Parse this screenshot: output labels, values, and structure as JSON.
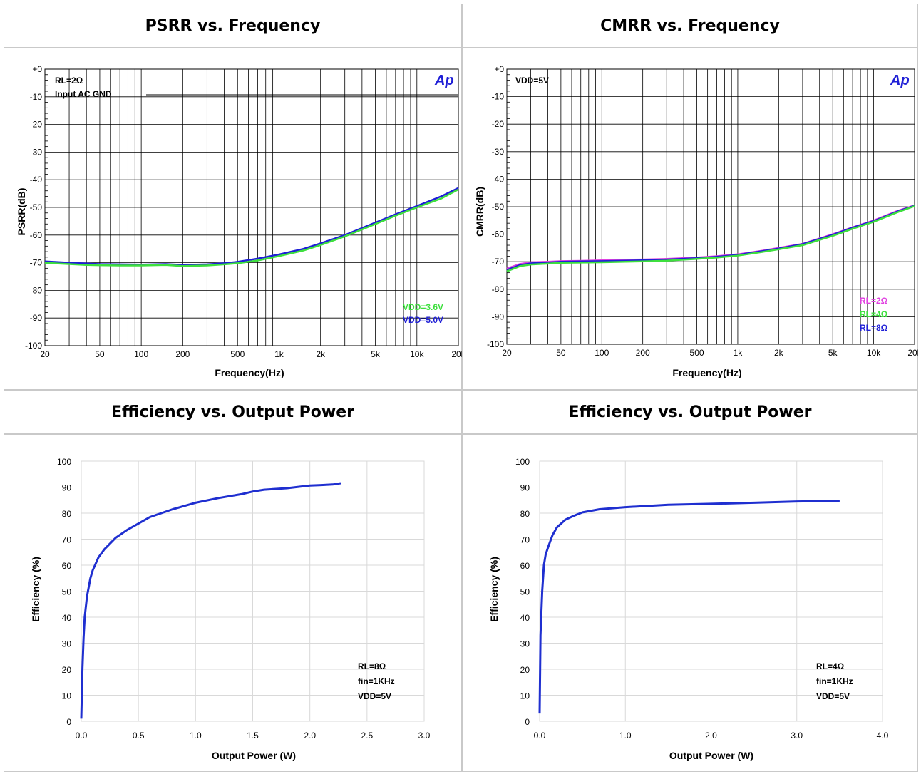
{
  "panels": {
    "psrr": {
      "title": "PSRR vs. Frequency"
    },
    "cmrr": {
      "title": "CMRR vs. Frequency"
    },
    "eff8": {
      "title": "Efficiency vs. Output Power"
    },
    "eff4": {
      "title": "Efficiency vs. Output Power"
    }
  },
  "colors": {
    "blue": "#1f1fd6",
    "green": "#3ee03e",
    "magenta": "#e040e0",
    "grid": "#000000",
    "eff_line": "#1f2fd0",
    "eff_grid": "#d9d9d9"
  },
  "logo_text": "Ap",
  "chart_data": [
    {
      "id": "psrr",
      "type": "line",
      "title": "PSRR vs. Frequency",
      "xlabel": "Frequency(Hz)",
      "ylabel": "PSRR(dB)",
      "x_scale": "log",
      "xlim": [
        20,
        20000
      ],
      "ylim": [
        -100,
        0
      ],
      "x_ticks": [
        20,
        50,
        100,
        200,
        500,
        1000,
        2000,
        5000,
        10000,
        20000
      ],
      "x_tick_labels": [
        "20",
        "50",
        "100",
        "200",
        "500",
        "1k",
        "2k",
        "5k",
        "10k",
        "20k"
      ],
      "y_ticks": [
        0,
        -10,
        -20,
        -30,
        -40,
        -50,
        -60,
        -70,
        -80,
        -90,
        -100
      ],
      "y_tick_labels": [
        "+0",
        "-10",
        "-20",
        "-30",
        "-40",
        "-50",
        "-60",
        "-70",
        "-80",
        "-90",
        "-100"
      ],
      "annotations": [
        "RL=2Ω",
        "Input AC GND"
      ],
      "legend": [
        {
          "label": "VDD=3.6V",
          "color": "#3ee03e"
        },
        {
          "label": "VDD=5.0V",
          "color": "#1f1fd6"
        }
      ],
      "series": [
        {
          "name": "VDD=5.0V",
          "color": "#1f1fd6",
          "x": [
            20,
            25,
            30,
            40,
            50,
            70,
            100,
            150,
            200,
            300,
            400,
            500,
            700,
            1000,
            1500,
            2000,
            3000,
            5000,
            7000,
            10000,
            15000,
            20000
          ],
          "y": [
            -69.5,
            -69.8,
            -70,
            -70.3,
            -70.5,
            -70.6,
            -70.7,
            -70.5,
            -70.8,
            -70.6,
            -70.2,
            -69.7,
            -68.5,
            -67,
            -65,
            -63,
            -60,
            -55.5,
            -52.5,
            -49.5,
            -46,
            -43
          ]
        },
        {
          "name": "VDD=3.6V",
          "color": "#3ee03e",
          "x": [
            20,
            25,
            30,
            40,
            50,
            70,
            100,
            150,
            200,
            300,
            400,
            500,
            700,
            1000,
            1500,
            2000,
            3000,
            5000,
            7000,
            10000,
            15000,
            20000
          ],
          "y": [
            -70,
            -70.3,
            -70.5,
            -70.8,
            -70.9,
            -71,
            -71,
            -70.8,
            -71.2,
            -71,
            -70.6,
            -70.2,
            -69.2,
            -67.6,
            -65.6,
            -63.6,
            -60.5,
            -56,
            -53,
            -50,
            -46.8,
            -43.5
          ]
        }
      ]
    },
    {
      "id": "cmrr",
      "type": "line",
      "title": "CMRR vs. Frequency",
      "xlabel": "Frequency(Hz)",
      "ylabel": "CMRR(dB)",
      "x_scale": "log",
      "xlim": [
        20,
        20000
      ],
      "ylim": [
        -100,
        0
      ],
      "x_ticks": [
        20,
        50,
        100,
        200,
        500,
        1000,
        2000,
        5000,
        10000,
        20000
      ],
      "x_tick_labels": [
        "20",
        "50",
        "100",
        "200",
        "500",
        "1k",
        "2k",
        "5k",
        "10k",
        "20k"
      ],
      "y_ticks": [
        0,
        -10,
        -20,
        -30,
        -40,
        -50,
        -60,
        -70,
        -80,
        -90,
        -100
      ],
      "y_tick_labels": [
        "+0",
        "-10",
        "-20",
        "-30",
        "-40",
        "-50",
        "-60",
        "-70",
        "-80",
        "-90",
        "-100"
      ],
      "annotations": [
        "VDD=5V"
      ],
      "legend": [
        {
          "label": "RL=2Ω",
          "color": "#e040e0"
        },
        {
          "label": "RL=4Ω",
          "color": "#3ee03e"
        },
        {
          "label": "RL=8Ω",
          "color": "#1f1fd6"
        }
      ],
      "series": [
        {
          "name": "RL=2Ω",
          "color": "#e040e0",
          "x": [
            20,
            25,
            30,
            40,
            50,
            70,
            100,
            150,
            200,
            300,
            500,
            700,
            1000,
            1500,
            2000,
            3000,
            5000,
            7000,
            10000,
            15000,
            20000
          ],
          "y": [
            -72.5,
            -70.8,
            -70.2,
            -70,
            -69.8,
            -69.7,
            -69.5,
            -69.3,
            -69.2,
            -69,
            -68.5,
            -68,
            -67.3,
            -66,
            -65,
            -63.5,
            -60,
            -57.5,
            -55,
            -51.5,
            -49.5
          ]
        },
        {
          "name": "RL=8Ω",
          "color": "#1f1fd6",
          "x": [
            20,
            25,
            30,
            40,
            50,
            70,
            100,
            150,
            200,
            300,
            500,
            700,
            1000,
            1500,
            2000,
            3000,
            5000,
            7000,
            10000,
            15000,
            20000
          ],
          "y": [
            -73,
            -71.2,
            -70.6,
            -70.3,
            -70,
            -69.9,
            -69.8,
            -69.6,
            -69.5,
            -69.2,
            -68.7,
            -68.2,
            -67.5,
            -66.2,
            -65.2,
            -63.6,
            -60.2,
            -57.6,
            -55.2,
            -51.7,
            -49.6
          ]
        },
        {
          "name": "RL=4Ω",
          "color": "#3ee03e",
          "x": [
            20,
            25,
            30,
            40,
            50,
            70,
            100,
            150,
            200,
            300,
            500,
            700,
            1000,
            1500,
            2000,
            3000,
            5000,
            7000,
            10000,
            15000,
            20000
          ],
          "y": [
            -73.5,
            -71.6,
            -71,
            -70.7,
            -70.4,
            -70.3,
            -70.2,
            -70,
            -69.9,
            -69.6,
            -69,
            -68.5,
            -67.8,
            -66.5,
            -65.5,
            -64,
            -60.6,
            -58,
            -55.5,
            -52,
            -49.8
          ]
        }
      ]
    },
    {
      "id": "eff8",
      "type": "line",
      "title": "Efficiency vs. Output Power",
      "xlabel": "Output Power (W)",
      "ylabel": "Efficiency (%)",
      "xlim": [
        0,
        3.0
      ],
      "ylim": [
        0,
        100
      ],
      "x_ticks": [
        0,
        0.5,
        1.0,
        1.5,
        2.0,
        2.5,
        3.0
      ],
      "x_tick_labels": [
        "0.0",
        "0.5",
        "1.0",
        "1.5",
        "2.0",
        "2.5",
        "3.0"
      ],
      "y_ticks": [
        0,
        10,
        20,
        30,
        40,
        50,
        60,
        70,
        80,
        90,
        100
      ],
      "annotations": [
        "RL=8Ω",
        "fin=1KHz",
        "VDD=5V"
      ],
      "series": [
        {
          "color": "#1f2fd0",
          "x": [
            0.0,
            0.01,
            0.02,
            0.03,
            0.05,
            0.08,
            0.1,
            0.15,
            0.2,
            0.3,
            0.4,
            0.5,
            0.6,
            0.8,
            1.0,
            1.2,
            1.4,
            1.5,
            1.6,
            1.8,
            2.0,
            2.1,
            2.2,
            2.27
          ],
          "y": [
            1,
            20,
            32,
            40,
            48,
            55,
            58,
            63,
            66,
            70.5,
            73.5,
            76,
            78.5,
            81.5,
            84,
            85.8,
            87.3,
            88.3,
            89,
            89.6,
            90.6,
            90.8,
            91,
            91.5
          ]
        }
      ]
    },
    {
      "id": "eff4",
      "type": "line",
      "title": "Efficiency vs. Output Power",
      "xlabel": "Output Power (W)",
      "ylabel": "Efficiency (%)",
      "xlim": [
        0,
        4.0
      ],
      "ylim": [
        0,
        100
      ],
      "x_ticks": [
        0,
        1.0,
        2.0,
        3.0,
        4.0
      ],
      "x_tick_labels": [
        "0.0",
        "1.0",
        "2.0",
        "3.0",
        "4.0"
      ],
      "y_ticks": [
        0,
        10,
        20,
        30,
        40,
        50,
        60,
        70,
        80,
        90,
        100
      ],
      "annotations": [
        "RL=4Ω",
        "fin=1KHz",
        "VDD=5V"
      ],
      "series": [
        {
          "color": "#1f2fd0",
          "x": [
            0.0,
            0.01,
            0.03,
            0.05,
            0.07,
            0.1,
            0.15,
            0.2,
            0.3,
            0.4,
            0.5,
            0.7,
            1.0,
            1.5,
            2.0,
            2.5,
            3.0,
            3.5
          ],
          "y": [
            3,
            33,
            50,
            60,
            64,
            67,
            71.5,
            74.5,
            77.5,
            79,
            80.3,
            81.5,
            82.3,
            83.2,
            83.6,
            84,
            84.5,
            84.7
          ]
        }
      ]
    }
  ]
}
